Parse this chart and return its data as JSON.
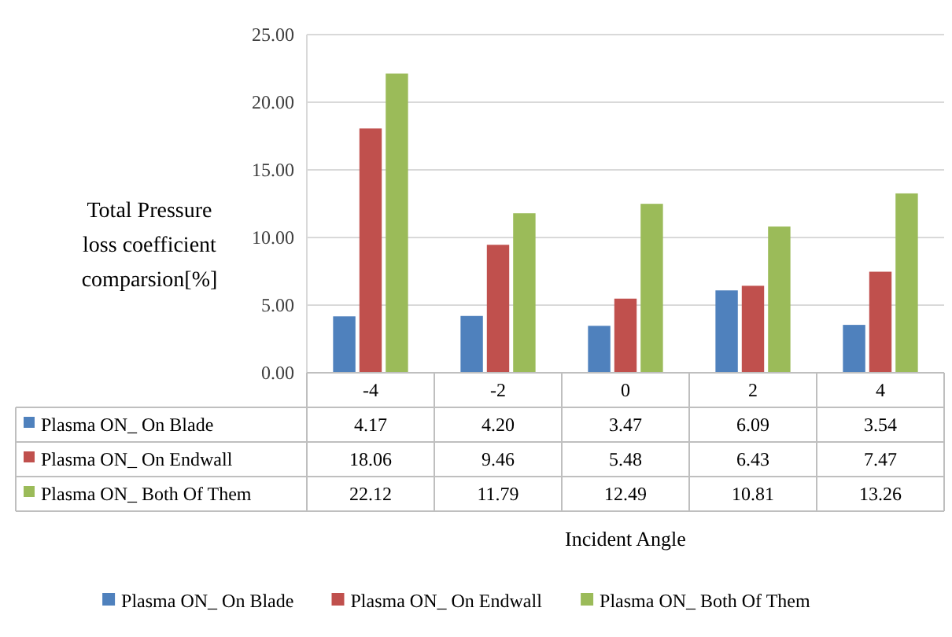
{
  "chart_data": {
    "type": "bar",
    "annotations": [
      "Incident Angle"
    ],
    "ylabel": "Total Pressure loss coefficient comparsion[%]",
    "categories": [
      "-4",
      "-2",
      "0",
      "2",
      "4"
    ],
    "series": [
      {
        "name": "Plasma ON_ On Blade",
        "color": "#4f81bd",
        "values": [
          4.17,
          4.2,
          3.47,
          6.09,
          3.54
        ],
        "value_labels": [
          "4.17",
          "4.20",
          "3.47",
          "6.09",
          "3.54"
        ]
      },
      {
        "name": "Plasma ON_ On Endwall",
        "color": "#c0504d",
        "values": [
          18.06,
          9.46,
          5.48,
          6.43,
          7.47
        ],
        "value_labels": [
          "18.06",
          "9.46",
          "5.48",
          "6.43",
          "7.47"
        ]
      },
      {
        "name": "Plasma ON_ Both Of Them",
        "color": "#9bbb59",
        "values": [
          22.12,
          11.79,
          12.49,
          10.81,
          13.26
        ],
        "value_labels": [
          "22.12",
          "11.79",
          "12.49",
          "10.81",
          "13.26"
        ]
      }
    ],
    "ylim": [
      0,
      25
    ],
    "yticks": [
      {
        "value": 0,
        "label": "0.00"
      },
      {
        "value": 5,
        "label": "5.00"
      },
      {
        "value": 10,
        "label": "10.00"
      },
      {
        "value": 15,
        "label": "15.00"
      },
      {
        "value": 20,
        "label": "20.00"
      },
      {
        "value": 25,
        "label": "25.00"
      }
    ],
    "grid": true,
    "legend": "bottom"
  }
}
